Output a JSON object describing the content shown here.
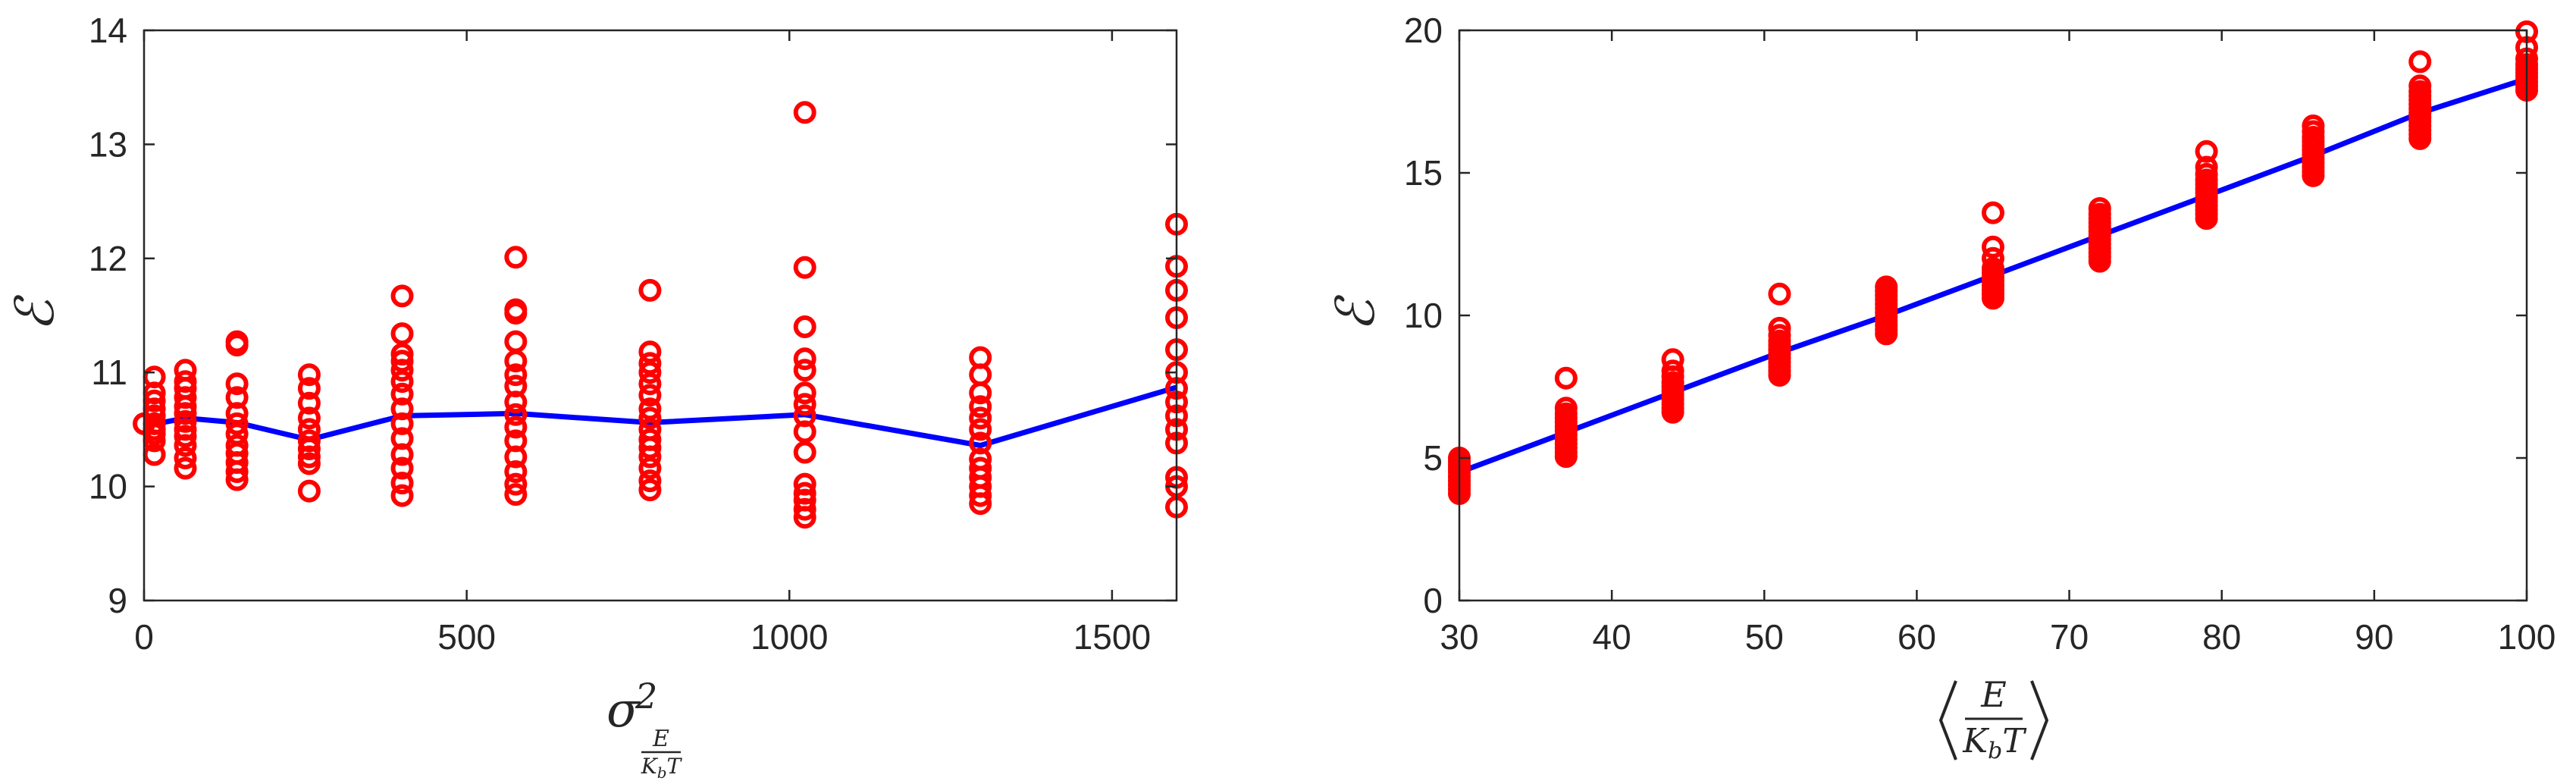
{
  "chart_data": [
    {
      "type": "scatter",
      "xlabel": "σ²_{E/(K_bT)}",
      "ylabel": "ℰ",
      "xlim": [
        0,
        1600
      ],
      "ylim": [
        9,
        14
      ],
      "xticks": [
        0,
        500,
        1000,
        1500
      ],
      "yticks": [
        9,
        10,
        11,
        12,
        13,
        14
      ],
      "xtick_labels": [
        "0",
        "500",
        "1000",
        "1500"
      ],
      "ytick_labels": [
        "9",
        "10",
        "11",
        "12",
        "13",
        "14"
      ],
      "grid": false,
      "legend": "none",
      "marker_color": "#ff0000",
      "line_color": "#0000ff",
      "points": {
        "x": [
          0,
          16,
          64,
          144,
          256,
          400,
          576,
          784,
          1024,
          1296,
          1600
        ],
        "y_samples": [
          [
            10.55
          ],
          [
            10.28,
            10.4,
            10.46,
            10.5,
            10.55,
            10.62,
            10.68,
            10.75,
            10.82,
            10.96
          ],
          [
            10.16,
            10.25,
            10.36,
            10.44,
            10.5,
            10.57,
            10.64,
            10.7,
            10.78,
            10.86,
            10.92,
            11.02
          ],
          [
            10.06,
            10.13,
            10.21,
            10.29,
            10.36,
            10.46,
            10.55,
            10.64,
            10.78,
            10.9,
            11.24,
            11.27
          ],
          [
            9.96,
            10.2,
            10.26,
            10.33,
            10.4,
            10.5,
            10.6,
            10.73,
            10.86,
            10.98
          ],
          [
            9.92,
            10.03,
            10.16,
            10.28,
            10.42,
            10.55,
            10.68,
            10.81,
            10.92,
            11.02,
            11.1,
            11.16,
            11.34,
            11.67
          ],
          [
            9.93,
            10.02,
            10.13,
            10.26,
            10.4,
            10.52,
            10.63,
            10.74,
            10.88,
            10.98,
            11.1,
            11.27,
            11.52,
            11.55,
            12.01
          ],
          [
            9.97,
            10.05,
            10.16,
            10.26,
            10.34,
            10.41,
            10.5,
            10.6,
            10.68,
            10.8,
            10.9,
            11.0,
            11.08,
            11.18,
            11.72
          ],
          [
            9.73,
            9.8,
            9.88,
            9.94,
            10.02,
            10.3,
            10.48,
            10.62,
            10.72,
            10.82,
            11.02,
            11.12,
            11.4,
            11.92,
            13.28
          ],
          [
            9.85,
            9.92,
            10.0,
            10.08,
            10.16,
            10.24,
            10.38,
            10.5,
            10.6,
            10.7,
            10.82,
            10.98,
            11.13
          ],
          [
            9.82,
            10.0,
            10.08,
            10.38,
            10.5,
            10.62,
            10.74,
            10.86,
            11.0,
            11.2,
            11.48,
            11.72,
            11.93,
            12.3
          ]
        ]
      },
      "mean_line": {
        "x": [
          0,
          64,
          144,
          256,
          400,
          576,
          784,
          1024,
          1296,
          1600
        ],
        "y": [
          10.53,
          10.6,
          10.56,
          10.41,
          10.62,
          10.64,
          10.56,
          10.63,
          10.36,
          10.87
        ]
      }
    },
    {
      "type": "scatter",
      "xlabel": "⟨E/(K_bT)⟩",
      "ylabel": "ℰ",
      "xlim": [
        30,
        100
      ],
      "ylim": [
        0,
        20
      ],
      "xticks": [
        30,
        40,
        50,
        60,
        70,
        80,
        90,
        100
      ],
      "yticks": [
        0,
        5,
        10,
        15,
        20
      ],
      "xtick_labels": [
        "30",
        "40",
        "50",
        "60",
        "70",
        "80",
        "90",
        "100"
      ],
      "ytick_labels": [
        "0",
        "5",
        "10",
        "15",
        "20"
      ],
      "grid": false,
      "legend": "none",
      "marker_color": "#ff0000",
      "line_color": "#0000ff",
      "points": {
        "x": [
          30,
          37,
          44,
          51,
          58,
          65,
          72,
          79,
          86,
          93,
          100
        ],
        "y_samples": [
          [
            3.75,
            3.9,
            4.05,
            4.2,
            4.35,
            4.5,
            4.62,
            4.75,
            4.88,
            5.0
          ],
          [
            5.05,
            5.2,
            5.35,
            5.5,
            5.65,
            5.8,
            5.95,
            6.1,
            6.25,
            6.4,
            6.55,
            6.75,
            7.8
          ],
          [
            6.6,
            6.75,
            6.9,
            7.05,
            7.2,
            7.35,
            7.5,
            7.65,
            7.85,
            8.05,
            8.45
          ],
          [
            7.9,
            8.05,
            8.2,
            8.35,
            8.5,
            8.65,
            8.8,
            8.95,
            9.1,
            9.3,
            9.55,
            10.75
          ],
          [
            9.35,
            9.5,
            9.65,
            9.8,
            9.95,
            10.1,
            10.25,
            10.4,
            10.55,
            10.7,
            10.85,
            11.0
          ],
          [
            10.6,
            10.75,
            10.9,
            11.05,
            11.2,
            11.35,
            11.5,
            11.65,
            12.0,
            12.4,
            13.6
          ],
          [
            11.9,
            12.05,
            12.2,
            12.35,
            12.5,
            12.65,
            12.8,
            12.95,
            13.1,
            13.25,
            13.4,
            13.55,
            13.75
          ],
          [
            13.4,
            13.55,
            13.7,
            13.85,
            14.0,
            14.15,
            14.3,
            14.45,
            14.6,
            14.75,
            14.95,
            15.2,
            15.75
          ],
          [
            14.9,
            15.05,
            15.2,
            15.35,
            15.5,
            15.65,
            15.8,
            15.95,
            16.1,
            16.25,
            16.45,
            16.65
          ],
          [
            16.2,
            16.35,
            16.5,
            16.65,
            16.8,
            16.95,
            17.1,
            17.25,
            17.4,
            17.55,
            17.7,
            17.85,
            18.05,
            18.9
          ],
          [
            17.9,
            18.05,
            18.2,
            18.35,
            18.5,
            18.65,
            18.8,
            19.0,
            19.4,
            19.95
          ]
        ]
      },
      "mean_line": {
        "x": [
          30,
          37,
          44,
          51,
          58,
          65,
          72,
          79,
          86,
          93,
          100
        ],
        "y": [
          4.5,
          5.9,
          7.3,
          8.7,
          10.0,
          11.4,
          12.8,
          14.2,
          15.6,
          17.1,
          18.3
        ]
      }
    }
  ]
}
